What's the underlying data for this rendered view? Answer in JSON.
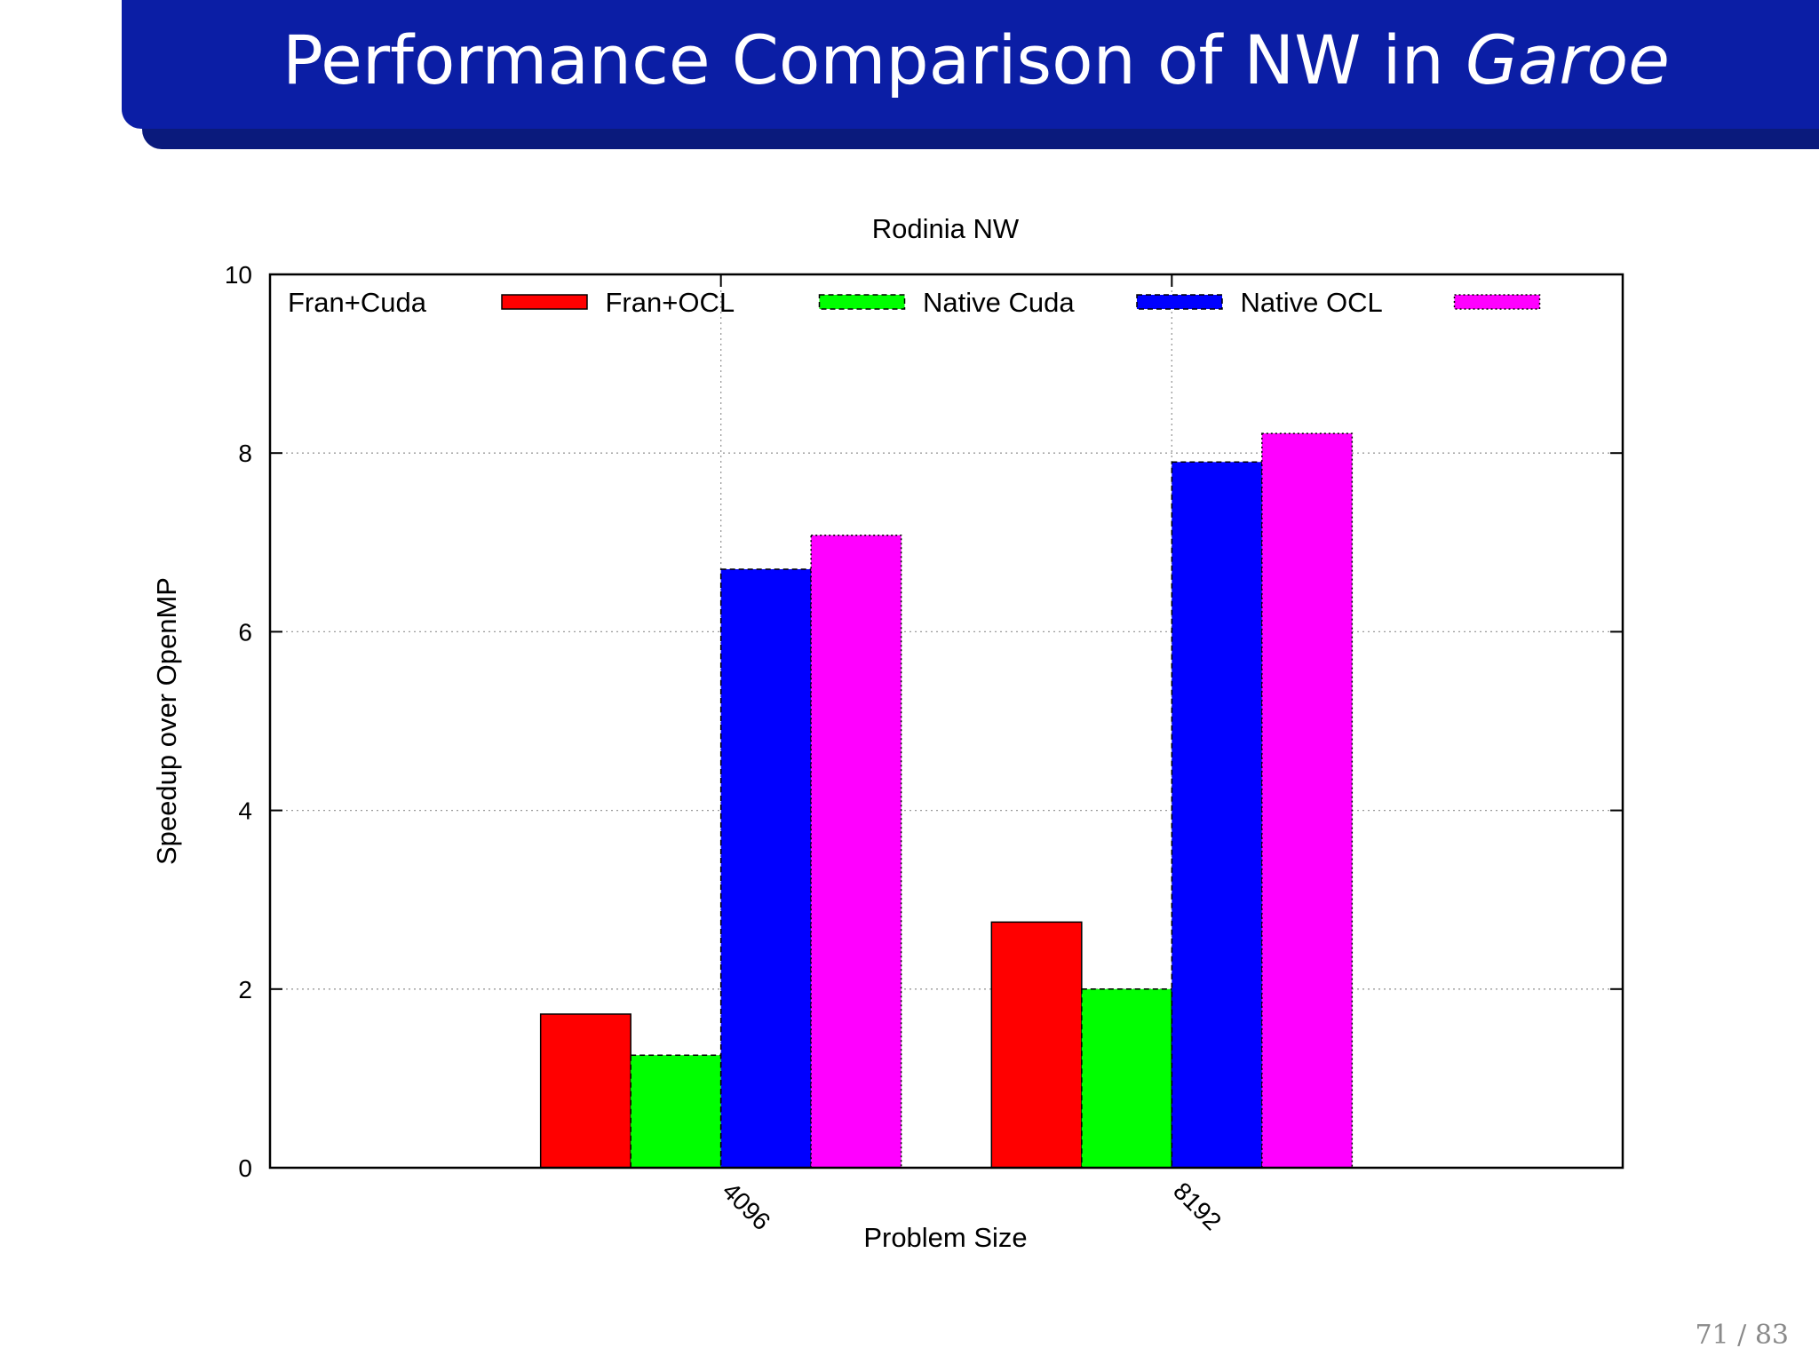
{
  "slide": {
    "title_main": "Performance Comparison of NW in ",
    "title_emph": "Garoe",
    "page_current": "71",
    "page_total": "83",
    "title_bar_color": "#0b1ea5"
  },
  "chart_data": {
    "type": "bar",
    "title": "Rodinia NW",
    "xlabel": "Problem Size",
    "ylabel": "Speedup over OpenMP",
    "ylim": [
      0,
      10
    ],
    "yticks": [
      0,
      2,
      4,
      6,
      8,
      10
    ],
    "grid": true,
    "legend_position": "top",
    "categories": [
      "4096",
      "8192"
    ],
    "series": [
      {
        "name": "Fran+Cuda",
        "color": "#ff0000",
        "dash": "solid",
        "values": [
          1.72,
          2.75
        ]
      },
      {
        "name": "Fran+OCL",
        "color": "#00ff00",
        "dash": "dashed",
        "values": [
          1.26,
          2.0
        ]
      },
      {
        "name": "Native Cuda",
        "color": "#0000ff",
        "dash": "dashed",
        "values": [
          6.7,
          7.9
        ]
      },
      {
        "name": "Native OCL",
        "color": "#ff00ff",
        "dash": "dotted",
        "values": [
          7.08,
          8.22
        ]
      }
    ]
  }
}
